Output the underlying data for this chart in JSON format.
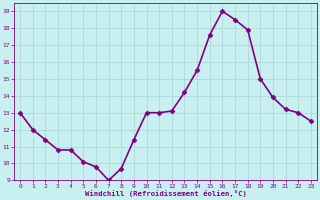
{
  "x": [
    0,
    1,
    2,
    3,
    4,
    5,
    6,
    7,
    8,
    9,
    10,
    11,
    12,
    13,
    14,
    15,
    16,
    17,
    18,
    19,
    20,
    21,
    22,
    23
  ],
  "y": [
    13.0,
    12.0,
    11.4,
    10.8,
    10.8,
    10.1,
    9.8,
    9.0,
    9.7,
    11.4,
    13.0,
    13.0,
    13.1,
    14.2,
    15.5,
    17.6,
    19.0,
    18.5,
    17.9,
    15.0,
    13.9,
    13.2,
    13.0,
    12.5
  ],
  "line_color": "#800080",
  "marker": "D",
  "marker_size": 2.5,
  "bg_color": "#c8f0f0",
  "grid_color": "#b0d8d8",
  "xlabel": "Windchill (Refroidissement éolien,°C)",
  "xlabel_color": "#800080",
  "tick_color": "#800080",
  "ylim": [
    9,
    19.5
  ],
  "xlim": [
    -0.5,
    23.5
  ],
  "yticks": [
    9,
    10,
    11,
    12,
    13,
    14,
    15,
    16,
    17,
    18,
    19
  ],
  "xticks": [
    0,
    1,
    2,
    3,
    4,
    5,
    6,
    7,
    8,
    9,
    10,
    11,
    12,
    13,
    14,
    15,
    16,
    17,
    18,
    19,
    20,
    21,
    22,
    23
  ],
  "linewidth": 1.2,
  "figsize": [
    3.2,
    2.0
  ],
  "dpi": 100
}
